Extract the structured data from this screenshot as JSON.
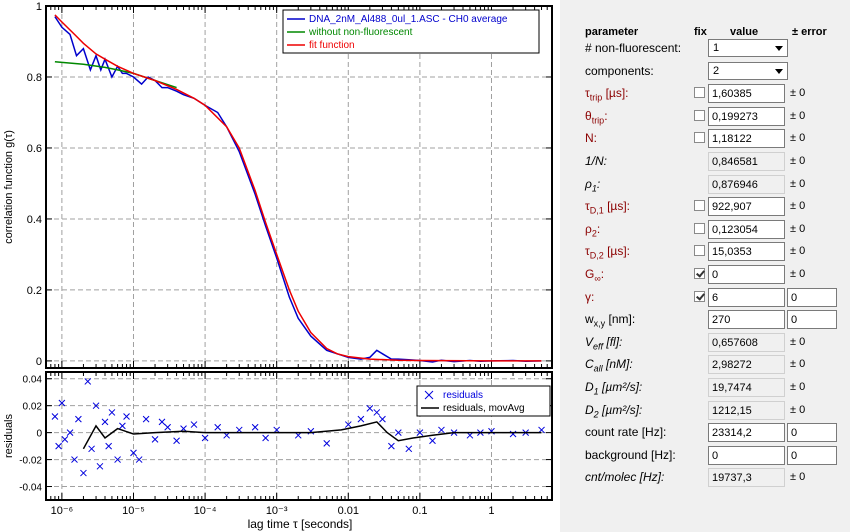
{
  "chart_data": [
    {
      "type": "line",
      "ylabel": "correlation function g(τ)",
      "x_scale": "log",
      "xlim": [
        6e-07,
        7
      ],
      "ylim": [
        -0.02,
        1.0
      ],
      "yticks": [
        "0",
        "0.2",
        "0.4",
        "0.6",
        "0.8",
        "1"
      ],
      "grid": true,
      "legend_position": "top-right",
      "series": [
        {
          "name": "DNA_2nM_Al488_0ul_1.ASC - CH0 average",
          "color": "#0000cc",
          "x": [
            8e-07,
            1e-06,
            1.3e-06,
            1.6e-06,
            2e-06,
            2.5e-06,
            3e-06,
            3.5e-06,
            4e-06,
            5e-06,
            6e-06,
            7e-06,
            8e-06,
            1e-05,
            1.3e-05,
            1.6e-05,
            2e-05,
            2.5e-05,
            3e-05,
            4e-05,
            5e-05,
            7e-05,
            0.0001,
            0.00015,
            0.0002,
            0.0003,
            0.0005,
            0.0007,
            0.001,
            0.0015,
            0.002,
            0.003,
            0.005,
            0.007,
            0.01,
            0.015,
            0.02,
            0.025,
            0.03,
            0.04,
            0.05,
            0.07,
            0.1,
            0.15,
            0.2,
            0.3,
            0.5,
            0.7,
            1,
            2,
            3,
            5
          ],
          "y": [
            0.97,
            0.94,
            0.92,
            0.86,
            0.88,
            0.82,
            0.86,
            0.82,
            0.85,
            0.8,
            0.83,
            0.81,
            0.81,
            0.8,
            0.78,
            0.8,
            0.79,
            0.77,
            0.77,
            0.76,
            0.75,
            0.74,
            0.72,
            0.7,
            0.66,
            0.59,
            0.47,
            0.38,
            0.29,
            0.18,
            0.12,
            0.07,
            0.03,
            0.02,
            0.01,
            0.005,
            0.01,
            0.03,
            0.02,
            0.005,
            0.005,
            0.003,
            0.001,
            -0.003,
            0.002,
            -0.002,
            0.001,
            -0.001,
            0.0,
            0.001,
            -0.001,
            0.0
          ]
        },
        {
          "name": "without non-fluorescent",
          "color": "#008800",
          "x": [
            8e-07,
            1e-06,
            2e-06,
            4e-06,
            6e-06,
            1e-05,
            2e-05,
            4e-05
          ],
          "y": [
            0.843,
            0.841,
            0.836,
            0.827,
            0.82,
            0.81,
            0.79,
            0.77
          ]
        },
        {
          "name": "fit function",
          "color": "#ee0000",
          "x": [
            8e-07,
            1e-06,
            1.5e-06,
            2e-06,
            3e-06,
            4e-06,
            6e-06,
            1e-05,
            2e-05,
            4e-05,
            7e-05,
            0.0001,
            0.0002,
            0.0003,
            0.0005,
            0.0007,
            0.001,
            0.0015,
            0.002,
            0.003,
            0.005,
            0.007,
            0.01,
            0.02,
            0.05,
            0.1,
            1,
            5
          ],
          "y": [
            0.975,
            0.955,
            0.92,
            0.895,
            0.865,
            0.85,
            0.83,
            0.81,
            0.79,
            0.765,
            0.74,
            0.72,
            0.66,
            0.6,
            0.48,
            0.39,
            0.3,
            0.2,
            0.14,
            0.08,
            0.035,
            0.02,
            0.012,
            0.005,
            0.002,
            0.001,
            0.0,
            0.0
          ]
        }
      ]
    },
    {
      "type": "line",
      "xlabel": "lag time τ [seconds]",
      "ylabel": "residuals",
      "x_scale": "log",
      "xlim": [
        6e-07,
        7
      ],
      "ylim": [
        -0.05,
        0.045
      ],
      "xticks": [
        "10⁻⁶",
        "10⁻⁵",
        "10⁻⁴",
        "10⁻³",
        "0.01",
        "0.1",
        "1"
      ],
      "yticks": [
        "0.04",
        "0.02",
        "0",
        "-0.02",
        "-0.04"
      ],
      "grid": true,
      "legend_position": "top-right",
      "series": [
        {
          "name": "residuals",
          "color": "#0000dd",
          "marker": "x",
          "x": [
            8e-07,
            9e-07,
            1e-06,
            1.1e-06,
            1.3e-06,
            1.5e-06,
            1.7e-06,
            2e-06,
            2.3e-06,
            2.6e-06,
            3e-06,
            3.4e-06,
            4e-06,
            4.5e-06,
            5e-06,
            6e-06,
            7e-06,
            8e-06,
            1e-05,
            1.2e-05,
            1.5e-05,
            2e-05,
            2.5e-05,
            3e-05,
            4e-05,
            5e-05,
            7e-05,
            0.0001,
            0.00015,
            0.0002,
            0.0003,
            0.0005,
            0.0007,
            0.001,
            0.002,
            0.003,
            0.005,
            0.01,
            0.015,
            0.02,
            0.025,
            0.03,
            0.04,
            0.05,
            0.07,
            0.1,
            0.15,
            0.2,
            0.3,
            0.5,
            0.7,
            1,
            2,
            3,
            5
          ],
          "y": [
            0.012,
            -0.01,
            0.022,
            -0.005,
            0.0,
            -0.02,
            0.01,
            -0.03,
            0.038,
            -0.012,
            0.02,
            -0.025,
            0.008,
            -0.01,
            0.015,
            -0.02,
            0.005,
            0.012,
            -0.015,
            -0.02,
            0.01,
            -0.005,
            0.008,
            0.004,
            -0.006,
            0.003,
            0.006,
            -0.004,
            0.004,
            -0.002,
            0.002,
            0.004,
            -0.004,
            0.002,
            -0.002,
            0.001,
            -0.008,
            0.006,
            0.01,
            0.018,
            0.015,
            0.01,
            -0.01,
            0.0,
            -0.012,
            0.0,
            -0.006,
            0.002,
            0.0,
            -0.002,
            0.0,
            0.001,
            -0.001,
            0.0,
            0.002
          ]
        },
        {
          "name": "residuals, movAvg",
          "color": "#000000",
          "x": [
            2e-06,
            3e-06,
            4e-06,
            6e-06,
            1e-05,
            2e-05,
            5e-05,
            0.0001,
            0.0003,
            0.001,
            0.003,
            0.008,
            0.015,
            0.025,
            0.035,
            0.05,
            0.08,
            0.15,
            0.3,
            1,
            5
          ],
          "y": [
            -0.012,
            0.005,
            -0.004,
            0.003,
            -0.001,
            0.0,
            0.001,
            0.0,
            0.0,
            0.0,
            0.0,
            0.002,
            0.005,
            0.008,
            0.0,
            -0.006,
            -0.004,
            -0.002,
            0.0,
            0.0,
            0.0
          ]
        }
      ]
    }
  ],
  "chart_text": {
    "top_ylabel": "correlation function g(τ)",
    "bottom_ylabel": "residuals",
    "xlabel": "lag time τ [seconds]"
  },
  "panel": {
    "headers": {
      "parameter": "parameter",
      "fix": "fix",
      "value": "value",
      "error": "± error"
    },
    "rows": [
      {
        "label": "# non-fluorescent:",
        "kind": "select",
        "value": "1"
      },
      {
        "label": "components:",
        "kind": "select",
        "value": "2"
      },
      {
        "label": "τtrip [µs]:",
        "kind": "fit",
        "fixed": false,
        "value": "1,60385",
        "error": "± 0"
      },
      {
        "label": "θtrip:",
        "kind": "fit",
        "fixed": false,
        "value": "0,199273",
        "error": "± 0"
      },
      {
        "label": "N:",
        "kind": "fit",
        "fixed": false,
        "value": "1,18122",
        "error": "± 0"
      },
      {
        "label": "1/N:",
        "kind": "derived",
        "value": "0,846581",
        "error": "± 0"
      },
      {
        "label": "ρ1:",
        "kind": "derived",
        "value": "0,876946",
        "error": "± 0"
      },
      {
        "label": "τD,1 [µs]:",
        "kind": "fit",
        "fixed": false,
        "value": "922,907",
        "error": "± 0"
      },
      {
        "label": "ρ2:",
        "kind": "fit",
        "fixed": false,
        "value": "0,123054",
        "error": "± 0"
      },
      {
        "label": "τD,2 [µs]:",
        "kind": "fit",
        "fixed": false,
        "value": "15,0353",
        "error": "± 0"
      },
      {
        "label": "G∞:",
        "kind": "fit",
        "fixed": true,
        "value": "0",
        "error": "± 0"
      },
      {
        "label": "γ:",
        "kind": "fitbox",
        "fixed": true,
        "value": "6",
        "error": "0"
      },
      {
        "label": "wx,y [nm]:",
        "kind": "inputbox",
        "value": "270",
        "error": "0"
      },
      {
        "label": "Veff [fl]:",
        "kind": "derived",
        "value": "0,657608",
        "error": "± 0"
      },
      {
        "label": "Call [nM]:",
        "kind": "derived",
        "value": "2,98272",
        "error": "± 0"
      },
      {
        "label": "D1 [µm²/s]:",
        "kind": "derived",
        "value": "19,7474",
        "error": "± 0"
      },
      {
        "label": "D2 [µm²/s]:",
        "kind": "derived",
        "value": "1212,15",
        "error": "± 0"
      },
      {
        "label": "count rate [Hz]:",
        "kind": "inputbox",
        "value": "23314,2",
        "error": "0"
      },
      {
        "label": "background [Hz]:",
        "kind": "inputbox",
        "value": "0",
        "error": "0"
      },
      {
        "label": "cnt/molec [Hz]:",
        "kind": "derived",
        "value": "19737,3",
        "error": "± 0"
      }
    ]
  }
}
